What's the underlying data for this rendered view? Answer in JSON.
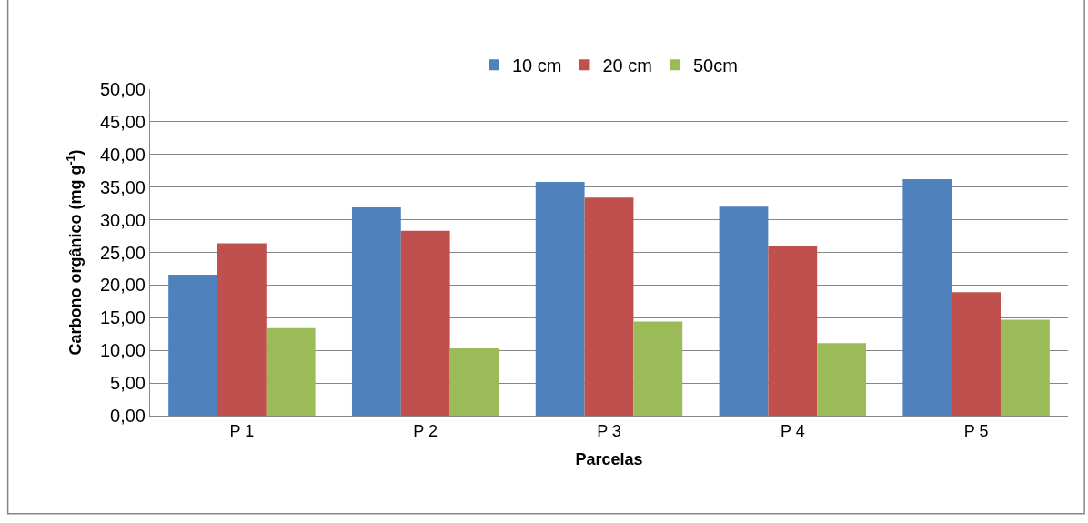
{
  "chart_data": {
    "type": "bar",
    "xlabel": "Parcelas",
    "ylabel": "Carbono orgânico (mg g$^{-1}$)",
    "categories": [
      "P 1",
      "P 2",
      "P 3",
      "P 4",
      "P 5"
    ],
    "series": [
      {
        "name": "10 cm",
        "color": "#4f81bd",
        "values": [
          21.6,
          31.9,
          35.8,
          32.0,
          36.2
        ]
      },
      {
        "name": "20 cm",
        "color": "#c0504d",
        "values": [
          26.4,
          28.3,
          33.4,
          25.9,
          18.9
        ]
      },
      {
        "name": "50cm",
        "color": "#9bbb59",
        "values": [
          13.4,
          10.3,
          14.4,
          11.1,
          14.7
        ]
      }
    ],
    "ylim": [
      0,
      50
    ],
    "yticks": [
      {
        "value": 0,
        "label": "0,00"
      },
      {
        "value": 5,
        "label": "5,00"
      },
      {
        "value": 10,
        "label": "10,00"
      },
      {
        "value": 15,
        "label": "15,00"
      },
      {
        "value": 20,
        "label": "20,00"
      },
      {
        "value": 25,
        "label": "25,00"
      },
      {
        "value": 30,
        "label": "30,00"
      },
      {
        "value": 35,
        "label": "35,00"
      },
      {
        "value": 40,
        "label": "40,00"
      },
      {
        "value": 45,
        "label": "45,00"
      },
      {
        "value": 50,
        "label": "50,00"
      }
    ],
    "grid": "y",
    "legend": "top"
  }
}
